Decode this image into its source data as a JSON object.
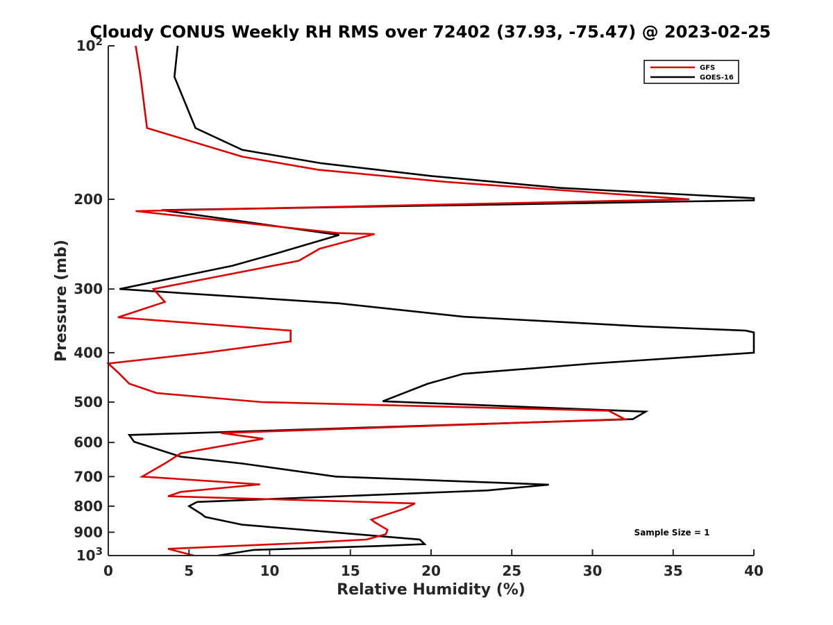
{
  "chart_data": {
    "type": "line",
    "title": "Cloudy CONUS Weekly RH RMS over 72402 (37.93, -75.47) @ 2023-02-25",
    "xlabel": "Relative Humidity (%)",
    "ylabel": "Pressure (mb)",
    "xlim": [
      0,
      40
    ],
    "ylim": [
      100,
      1000
    ],
    "y_scale": "log",
    "y_reversed": true,
    "x_ticks": [
      "0",
      "5",
      "10",
      "15",
      "20",
      "25",
      "30",
      "35",
      "40"
    ],
    "y_ticks": [
      {
        "value": 100,
        "base": "10",
        "exp": "2"
      },
      {
        "value": 200,
        "base": "200",
        "exp": ""
      },
      {
        "value": 300,
        "base": "300",
        "exp": ""
      },
      {
        "value": 400,
        "base": "400",
        "exp": ""
      },
      {
        "value": 500,
        "base": "500",
        "exp": ""
      },
      {
        "value": 600,
        "base": "600",
        "exp": ""
      },
      {
        "value": 700,
        "base": "700",
        "exp": ""
      },
      {
        "value": 800,
        "base": "800",
        "exp": ""
      },
      {
        "value": 900,
        "base": "900",
        "exp": ""
      },
      {
        "value": 1000,
        "base": "10",
        "exp": "3"
      }
    ],
    "legend_position": "top-right",
    "annotation": "Sample Size = 1",
    "grid": false,
    "series": [
      {
        "name": "GFS",
        "color": "#dd0000",
        "points": [
          [
            1.7,
            100
          ],
          [
            2.0,
            115
          ],
          [
            2.4,
            145
          ],
          [
            8.3,
            165
          ],
          [
            13,
            175
          ],
          [
            21,
            185
          ],
          [
            36,
            200
          ],
          [
            1.7,
            211
          ],
          [
            14.2,
            233
          ],
          [
            16.5,
            234
          ],
          [
            13.1,
            250
          ],
          [
            11.8,
            264
          ],
          [
            2.8,
            300
          ],
          [
            3.5,
            318
          ],
          [
            0.6,
            341
          ],
          [
            11.3,
            362
          ],
          [
            11.3,
            380
          ],
          [
            6,
            400
          ],
          [
            0,
            420
          ],
          [
            0.6,
            437
          ],
          [
            1.3,
            460
          ],
          [
            3,
            480
          ],
          [
            9.5,
            500
          ],
          [
            31,
            520
          ],
          [
            32,
            540
          ],
          [
            7,
            575
          ],
          [
            9.6,
            590
          ],
          [
            4.5,
            630
          ],
          [
            3.6,
            657
          ],
          [
            2.1,
            700
          ],
          [
            9.4,
            725
          ],
          [
            4.5,
            750
          ],
          [
            3.7,
            765
          ],
          [
            19,
            790
          ],
          [
            18.3,
            810
          ],
          [
            16.3,
            850
          ],
          [
            16.5,
            860
          ],
          [
            17.3,
            890
          ],
          [
            17.2,
            908
          ],
          [
            16,
            930
          ],
          [
            12,
            945
          ],
          [
            3.7,
            970
          ],
          [
            5.3,
            1000
          ]
        ]
      },
      {
        "name": "GOES-16",
        "color": "#000000",
        "points": [
          [
            4.3,
            100
          ],
          [
            4.1,
            115
          ],
          [
            5.4,
            145
          ],
          [
            8.3,
            160
          ],
          [
            13.2,
            170
          ],
          [
            20,
            180
          ],
          [
            28,
            190
          ],
          [
            40,
            199
          ],
          [
            40,
            201
          ],
          [
            3.3,
            210
          ],
          [
            14.3,
            235
          ],
          [
            10.5,
            255
          ],
          [
            7.7,
            270
          ],
          [
            0.7,
            300
          ],
          [
            14.3,
            320
          ],
          [
            22,
            340
          ],
          [
            33,
            355
          ],
          [
            39.5,
            362
          ],
          [
            40,
            365
          ],
          [
            40,
            400
          ],
          [
            30,
            420
          ],
          [
            22,
            440
          ],
          [
            19.8,
            460
          ],
          [
            17,
            498
          ],
          [
            33.3,
            522
          ],
          [
            32.5,
            540
          ],
          [
            1.3,
            580
          ],
          [
            1.6,
            598
          ],
          [
            4.5,
            640
          ],
          [
            8.3,
            660
          ],
          [
            14.1,
            700
          ],
          [
            27.3,
            726
          ],
          [
            23.5,
            745
          ],
          [
            5.5,
            785
          ],
          [
            5,
            800
          ],
          [
            5.8,
            830
          ],
          [
            6,
            840
          ],
          [
            8.3,
            870
          ],
          [
            19.3,
            930
          ],
          [
            19.6,
            950
          ],
          [
            16.7,
            958
          ],
          [
            9,
            975
          ],
          [
            6.8,
            1000
          ]
        ]
      }
    ]
  }
}
